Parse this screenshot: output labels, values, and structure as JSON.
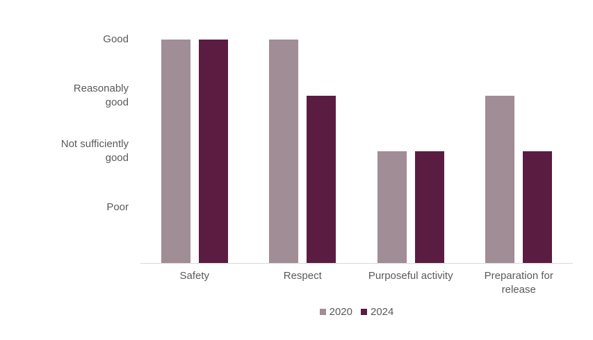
{
  "chart_data": {
    "type": "bar",
    "title": "",
    "xlabel": "",
    "ylabel": "",
    "categories": [
      "Safety",
      "Respect",
      "Purposeful activity",
      "Preparation for release"
    ],
    "series": [
      {
        "name": "2020",
        "color": "#A18D95",
        "values": [
          4,
          4,
          2,
          3
        ],
        "value_labels": [
          "Good",
          "Good",
          "Not sufficiently good",
          "Reasonably good"
        ]
      },
      {
        "name": "2024",
        "color": "#5B1C41",
        "values": [
          4,
          3,
          2,
          2
        ],
        "value_labels": [
          "Good",
          "Reasonably good",
          "Not sufficiently good",
          "Not sufficiently good"
        ]
      }
    ],
    "y_ticks": [
      {
        "value": 4,
        "label": "Good"
      },
      {
        "value": 3,
        "label": "Reasonably good"
      },
      {
        "value": 2,
        "label": "Not sufficiently good"
      },
      {
        "value": 1,
        "label": "Poor"
      }
    ],
    "ylim": [
      0,
      4
    ],
    "grid": false,
    "legend_position": "bottom",
    "colors": {
      "axis_line": "#D9D9D9",
      "text": "#595959",
      "background": "#FFFFFF"
    }
  }
}
